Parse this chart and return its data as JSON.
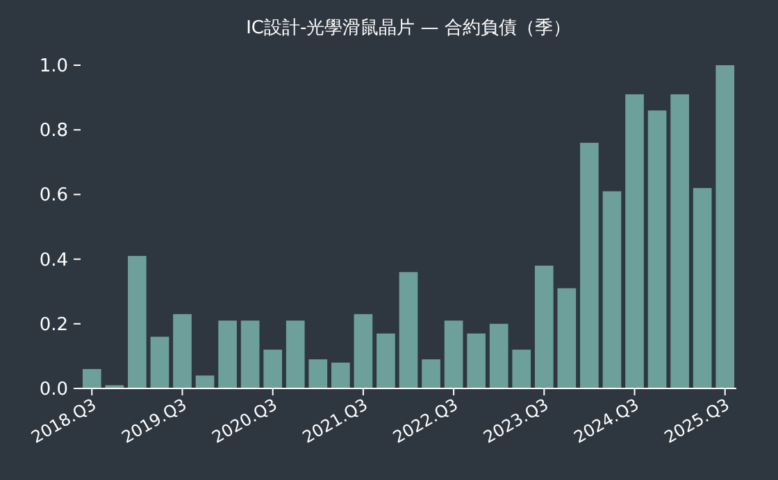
{
  "chart_data": {
    "type": "bar",
    "title": "IC設計-光學滑鼠晶片 — 合約負債（季）",
    "categories": [
      "2018.Q3",
      null,
      null,
      null,
      "2019.Q3",
      null,
      null,
      null,
      "2020.Q3",
      null,
      null,
      null,
      "2021.Q3",
      null,
      null,
      null,
      "2022.Q3",
      null,
      null,
      null,
      "2023.Q3",
      null,
      null,
      null,
      "2024.Q3",
      null,
      null,
      null,
      "2025.Q3"
    ],
    "values": [
      0.06,
      0.01,
      0.41,
      0.16,
      0.23,
      0.04,
      0.21,
      0.21,
      0.12,
      0.21,
      0.09,
      0.08,
      0.23,
      0.17,
      0.36,
      0.09,
      0.21,
      0.17,
      0.2,
      0.12,
      0.38,
      0.31,
      0.76,
      0.61,
      0.91,
      0.86,
      0.91,
      0.62,
      1.0
    ],
    "color": "#6d9f9b",
    "ylim": [
      0,
      1.0
    ],
    "yticks": [
      {
        "value": 0,
        "label": "0.0"
      },
      0.2,
      0.4,
      0.6,
      0.8,
      {
        "value": 1,
        "label": "1.0"
      }
    ],
    "grid": false
  }
}
